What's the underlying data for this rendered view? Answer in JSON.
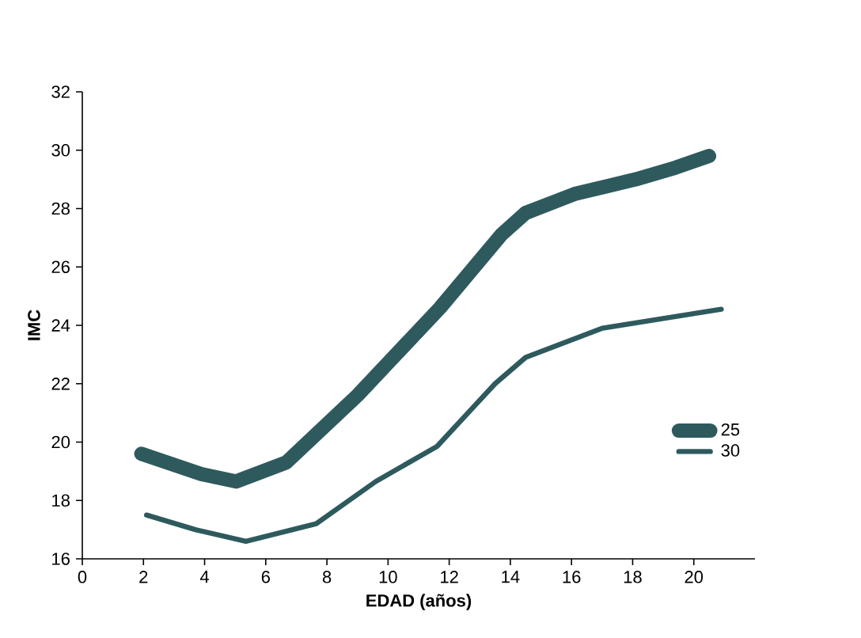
{
  "chart_data": {
    "type": "line",
    "xlabel": "EDAD (años)",
    "ylabel": "IMC",
    "xlim": [
      0,
      22
    ],
    "xticks": [
      0,
      2,
      4,
      6,
      8,
      10,
      12,
      14,
      16,
      18,
      20
    ],
    "ylim": [
      16,
      32
    ],
    "yticks": [
      16,
      18,
      20,
      22,
      24,
      26,
      28,
      30,
      32
    ],
    "legend": "right",
    "grid": false,
    "marker": "none",
    "line_style": "solid",
    "series": [
      {
        "name": "25",
        "color": "#2e5a5e",
        "x": [
          1.93,
          3.9,
          5.03,
          6.67,
          9.0,
          11.7,
          13.7,
          14.5,
          16.1,
          18.1,
          19.4,
          20.5
        ],
        "values": [
          19.6,
          18.9,
          18.65,
          19.3,
          21.6,
          24.6,
          27.1,
          27.85,
          28.5,
          29.0,
          29.4,
          29.8
        ]
      },
      {
        "name": "30",
        "color": "#2e5a5e",
        "x": [
          2.1,
          3.7,
          5.35,
          7.65,
          9.6,
          11.6,
          13.5,
          14.5,
          17.0,
          20.9
        ],
        "values": [
          17.5,
          17.0,
          16.6,
          17.2,
          18.65,
          19.85,
          22.0,
          22.9,
          23.9,
          24.55
        ]
      }
    ]
  }
}
